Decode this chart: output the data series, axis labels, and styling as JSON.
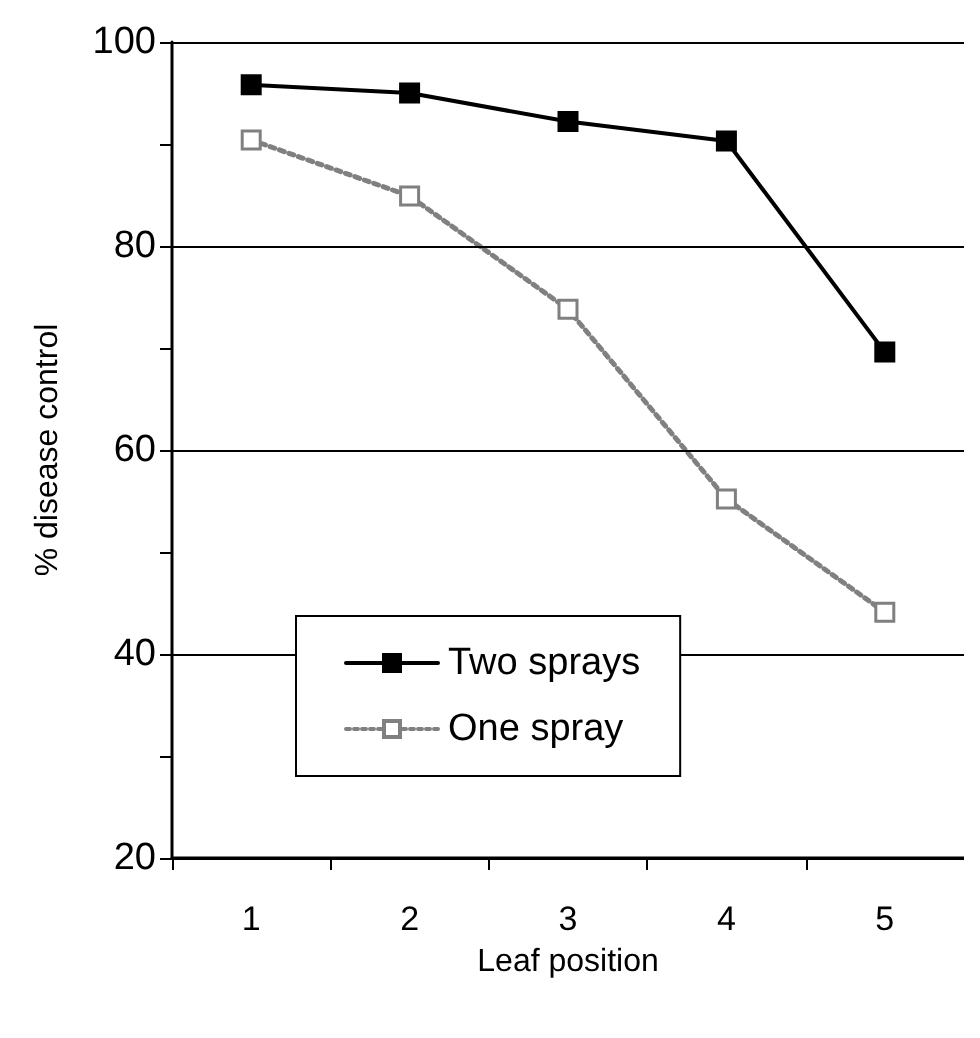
{
  "chart_data": {
    "type": "line",
    "xlabel": "Leaf position",
    "ylabel": "% disease control",
    "categories": [
      "1",
      "2",
      "3",
      "4",
      "5"
    ],
    "series": [
      {
        "name": "Two sprays",
        "color": "#000000",
        "values": [
          95.8,
          95.0,
          92.2,
          90.3,
          69.6
        ],
        "marker": "square",
        "line_style": "solid"
      },
      {
        "name": "One spray",
        "color": "#808080",
        "values": [
          90.4,
          84.9,
          73.8,
          55.2,
          44.1
        ],
        "marker": "square",
        "line_style": "dotted"
      }
    ],
    "ylim": [
      20,
      100
    ],
    "yticks": [
      20,
      {
        "value": 30,
        "label": null
      },
      40,
      {
        "value": 50,
        "label": null
      },
      60,
      {
        "value": 70,
        "label": null
      },
      80,
      {
        "value": 90,
        "label": null
      },
      100
    ],
    "grid": "y",
    "legend": "bottom"
  }
}
